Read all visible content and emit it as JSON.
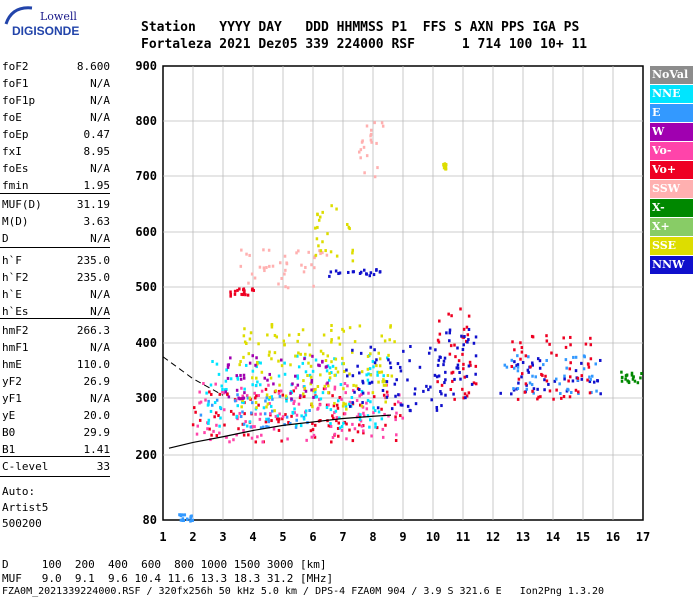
{
  "logo": {
    "line1": "Lowell",
    "line2": "DIGISONDE"
  },
  "header": {
    "row1": "Station   YYYY DAY   DDD HHMMSS P1  FFS S AXN PPS IGA PS",
    "row2": "Fortaleza 2021 Dez05 339 224000 RSF      1 714 100 10+ 11"
  },
  "params_group1": [
    {
      "k": "foF2",
      "v": "8.600"
    },
    {
      "k": "foF1",
      "v": "N/A"
    },
    {
      "k": "foF1p",
      "v": "N/A"
    },
    {
      "k": "foE",
      "v": "N/A"
    },
    {
      "k": "foEp",
      "v": "0.47"
    },
    {
      "k": "fxI",
      "v": "8.95"
    },
    {
      "k": "foEs",
      "v": "N/A"
    },
    {
      "k": "fmin",
      "v": "1.95"
    }
  ],
  "params_group2": [
    {
      "k": "MUF(D)",
      "v": "31.19"
    },
    {
      "k": "M(D)",
      "v": "3.63"
    },
    {
      "k": "D",
      "v": "N/A"
    }
  ],
  "params_group3": [
    {
      "k": "h`F",
      "v": "235.0"
    },
    {
      "k": "h`F2",
      "v": "235.0"
    },
    {
      "k": "h`E",
      "v": "N/A"
    },
    {
      "k": "h`Es",
      "v": "N/A"
    }
  ],
  "params_group4": [
    {
      "k": "hmF2",
      "v": "266.3"
    },
    {
      "k": "hmF1",
      "v": "N/A"
    },
    {
      "k": "hmE",
      "v": "110.0"
    },
    {
      "k": "yF2",
      "v": "26.9"
    },
    {
      "k": "yF1",
      "v": "N/A"
    },
    {
      "k": "yE",
      "v": "20.0"
    },
    {
      "k": "B0",
      "v": "29.9"
    },
    {
      "k": "B1",
      "v": "1.41"
    }
  ],
  "clevel": {
    "k": "C-level",
    "v": "33"
  },
  "auto": {
    "l1": "Auto:",
    "l2": "Artist5",
    "l3": "500200"
  },
  "legend": [
    {
      "label": "NoVal",
      "color": "#8c8c8c"
    },
    {
      "label": "NNE",
      "color": "#00e5ff"
    },
    {
      "label": "E",
      "color": "#3399ff"
    },
    {
      "label": "W",
      "color": "#a000b0"
    },
    {
      "label": "Vo-",
      "color": "#ff44aa"
    },
    {
      "label": "Vo+",
      "color": "#ee0022"
    },
    {
      "label": "SSW",
      "color": "#ffb0b0"
    },
    {
      "label": "X-",
      "color": "#008800"
    },
    {
      "label": "X+",
      "color": "#88cc66"
    },
    {
      "label": "SSE",
      "color": "#dddd00"
    },
    {
      "label": "NNW",
      "color": "#1010cc"
    }
  ],
  "footer": {
    "d_row": "D     100  200  400  600  800 1000 1500 3000 [km]",
    "muf_row": "MUF   9.0  9.1  9.6 10.4 11.6 13.3 18.3 31.2 [MHz]",
    "file_row": "FZA0M_2021339224000.RSF / 320fx256h 50 kHz 5.0 km / DPS-4 FZA0M 904 / 3.9 S 321.6 E   Ion2Png 1.3.20"
  },
  "chart_data": {
    "type": "scatter",
    "xlim": [
      1,
      17
    ],
    "ylim": [
      80,
      900
    ],
    "xticks": [
      "1",
      "2",
      "3",
      "4",
      "5",
      "6",
      "7",
      "8",
      "9",
      "10",
      "11",
      "12",
      "13",
      "14",
      "15",
      "16",
      "17"
    ],
    "yticks": [
      "80",
      "200",
      "300",
      "400",
      "500",
      "600",
      "700",
      "800",
      "900"
    ],
    "grid": true,
    "traces": {
      "solid_line": {
        "x": [
          1.2,
          2.0,
          3.0,
          4.0,
          5.0,
          6.0,
          7.0,
          8.0,
          8.6
        ],
        "y": [
          212,
          222,
          232,
          243,
          252,
          258,
          264,
          268,
          270
        ]
      },
      "dashed_line": {
        "x": [
          1.0,
          2.0,
          3.0
        ],
        "y": [
          375,
          335,
          305
        ]
      }
    },
    "echo_clusters": [
      {
        "x": [
          1.9,
          8.9
        ],
        "y": [
          225,
          320
        ],
        "color": "#ee0022"
      },
      {
        "x": [
          2.0,
          9.0
        ],
        "y": [
          225,
          330
        ],
        "color": "#ff44aa"
      },
      {
        "x": [
          2.2,
          6.0
        ],
        "y": [
          250,
          310
        ],
        "color": "#3399ff"
      },
      {
        "x": [
          2.4,
          8.5
        ],
        "y": [
          250,
          380
        ],
        "color": "#00e5ff"
      },
      {
        "x": [
          3.5,
          8.7
        ],
        "y": [
          280,
          440
        ],
        "color": "#dddd00"
      },
      {
        "x": [
          7.0,
          10.5
        ],
        "y": [
          280,
          400
        ],
        "color": "#1010cc"
      },
      {
        "x": [
          3.0,
          6.5
        ],
        "y": [
          300,
          380
        ],
        "color": "#a000b0"
      },
      {
        "x": [
          10.0,
          11.4
        ],
        "y": [
          300,
          470
        ],
        "color": "#ee0022"
      },
      {
        "x": [
          10.0,
          11.4
        ],
        "y": [
          300,
          440
        ],
        "color": "#1010cc"
      },
      {
        "x": [
          12.2,
          15.6
        ],
        "y": [
          310,
          380
        ],
        "color": "#1010cc"
      },
      {
        "x": [
          12.2,
          15.6
        ],
        "y": [
          310,
          380
        ],
        "color": "#3399ff"
      },
      {
        "x": [
          12.5,
          15.3
        ],
        "y": [
          300,
          420
        ],
        "color": "#ee0022"
      },
      {
        "x": [
          16.2,
          17.0
        ],
        "y": [
          330,
          350
        ],
        "color": "#008800"
      },
      {
        "x": [
          3.2,
          4.0
        ],
        "y": [
          485,
          500
        ],
        "color": "#ee0022"
      },
      {
        "x": [
          3.5,
          6.5
        ],
        "y": [
          500,
          580
        ],
        "color": "#ffb0b0"
      },
      {
        "x": [
          6.0,
          7.3
        ],
        "y": [
          540,
          650
        ],
        "color": "#dddd00"
      },
      {
        "x": [
          6.5,
          8.4
        ],
        "y": [
          520,
          535
        ],
        "color": "#1010cc"
      },
      {
        "x": [
          1.5,
          2.0
        ],
        "y": [
          80,
          100
        ],
        "color": "#3399ff"
      },
      {
        "x": [
          10.3,
          10.4
        ],
        "y": [
          715,
          725
        ],
        "color": "#dddd00"
      },
      {
        "x": [
          7.5,
          8.5
        ],
        "y": [
          700,
          800
        ],
        "color": "#ffb0b0"
      }
    ]
  }
}
